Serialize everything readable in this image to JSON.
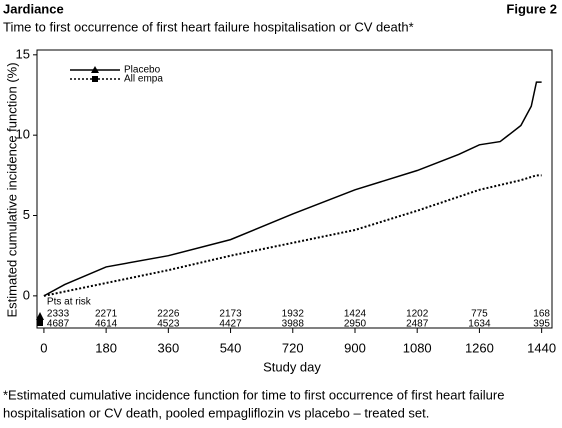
{
  "chart_data": {
    "type": "line",
    "brand": "Jardiance",
    "figure_label": "Figure 2",
    "title": "Time to first occurrence of first heart failure hospitalisation or CV death*",
    "ylabel": "Estimated cumulative incidence function (%)",
    "xlabel": "Study day",
    "xlim": [
      -20,
      1470
    ],
    "ylim": [
      -2,
      15.3
    ],
    "xticks": [
      0,
      180,
      360,
      540,
      720,
      900,
      1080,
      1260,
      1440
    ],
    "yticks": [
      0,
      5,
      10,
      15
    ],
    "grid": false,
    "legend": "upper left",
    "series": [
      {
        "name": "Placebo",
        "color": "#000000",
        "dash": "solid",
        "marker": "triangle",
        "x": [
          0,
          60,
          180,
          360,
          540,
          720,
          900,
          1080,
          1200,
          1260,
          1320,
          1380,
          1410,
          1425,
          1440
        ],
        "values": [
          0,
          0.7,
          1.8,
          2.5,
          3.5,
          5.1,
          6.6,
          7.8,
          8.8,
          9.4,
          9.6,
          10.6,
          11.8,
          13.3,
          13.3
        ]
      },
      {
        "name": "All empa",
        "color": "#000000",
        "dash": "dotted",
        "marker": "square",
        "x": [
          0,
          180,
          360,
          540,
          720,
          900,
          1080,
          1260,
          1380,
          1425,
          1440
        ],
        "values": [
          0,
          0.8,
          1.6,
          2.5,
          3.3,
          4.1,
          5.3,
          6.6,
          7.2,
          7.5,
          7.5
        ]
      }
    ],
    "at_risk_label": "Pts at risk",
    "at_risk": [
      [
        2333,
        2271,
        2226,
        2173,
        1932,
        1424,
        1202,
        775,
        168
      ],
      [
        4687,
        4614,
        4523,
        4427,
        3988,
        2950,
        2487,
        1634,
        395
      ]
    ],
    "footnote": [
      "*Estimated cumulative incidence function for time to first occurrence of first heart failure",
      "hospitalisation or CV death, pooled empagliflozin vs placebo – treated set."
    ]
  }
}
